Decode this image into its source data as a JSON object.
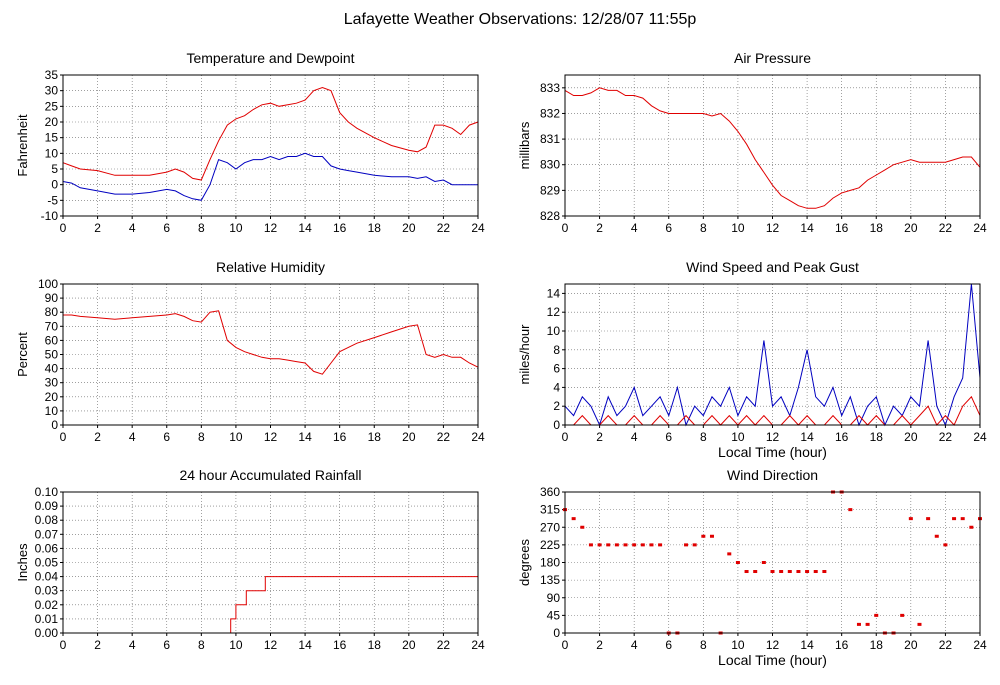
{
  "page_title": "Lafayette Weather Observations: 12/28/07 11:55p",
  "chart_data": [
    {
      "id": "temp",
      "type": "line",
      "title": "Temperature and Dewpoint",
      "ylabel": "Fahrenheit",
      "xlabel": "",
      "xlim": [
        0,
        24
      ],
      "ylim": [
        -10,
        35
      ],
      "xticks": [
        0,
        2,
        4,
        6,
        8,
        10,
        12,
        14,
        16,
        18,
        20,
        22,
        24
      ],
      "yticks": [
        -10,
        -5,
        0,
        5,
        10,
        15,
        20,
        25,
        30,
        35
      ],
      "grid": true,
      "series": [
        {
          "color": "#e00000",
          "x": [
            0,
            0.5,
            1,
            2,
            3,
            4,
            5,
            6,
            6.5,
            7,
            7.5,
            8,
            8.5,
            9,
            9.5,
            10,
            10.5,
            11,
            11.5,
            12,
            12.5,
            13,
            13.5,
            14,
            14.5,
            15,
            15.5,
            16,
            16.5,
            17,
            18,
            19,
            20,
            20.5,
            21,
            21.5,
            22,
            22.5,
            23,
            23.5,
            24
          ],
          "y": [
            7,
            6,
            5,
            4.5,
            3,
            3,
            3,
            4,
            5,
            4,
            2,
            1.5,
            8,
            14,
            19,
            21,
            22,
            24,
            25.5,
            26,
            25,
            25.5,
            26,
            27,
            30,
            31,
            30,
            23,
            20,
            18,
            15,
            12.5,
            11,
            10.5,
            12,
            19,
            19,
            18,
            16,
            19,
            20
          ]
        },
        {
          "color": "#0000c0",
          "x": [
            0,
            0.5,
            1,
            2,
            3,
            4,
            5,
            6,
            6.5,
            7,
            7.5,
            8,
            8.5,
            9,
            9.5,
            10,
            10.5,
            11,
            11.5,
            12,
            12.5,
            13,
            13.5,
            14,
            14.5,
            15,
            15.5,
            16,
            16.5,
            17,
            18,
            19,
            20,
            20.5,
            21,
            21.5,
            22,
            22.5,
            23,
            23.5,
            24
          ],
          "y": [
            1,
            0.5,
            -1,
            -2,
            -3,
            -3,
            -2.5,
            -1.5,
            -2,
            -3.5,
            -4.5,
            -5,
            0,
            8,
            7,
            5,
            7,
            8,
            8,
            9,
            8,
            9,
            9,
            10,
            9,
            9,
            6,
            5,
            4.5,
            4,
            3,
            2.5,
            2.5,
            2,
            2.5,
            1,
            1.5,
            0,
            0,
            0,
            0
          ]
        }
      ]
    },
    {
      "id": "pressure",
      "type": "line",
      "title": "Air Pressure",
      "ylabel": "millibars",
      "xlabel": "",
      "xlim": [
        0,
        24
      ],
      "ylim": [
        828,
        833.5
      ],
      "xticks": [
        0,
        2,
        4,
        6,
        8,
        10,
        12,
        14,
        16,
        18,
        20,
        22,
        24
      ],
      "yticks": [
        828,
        829,
        830,
        831,
        832,
        833
      ],
      "grid": true,
      "series": [
        {
          "color": "#e00000",
          "x": [
            0,
            0.5,
            1,
            1.5,
            2,
            2.5,
            3,
            3.5,
            4,
            4.5,
            5,
            5.5,
            6,
            7,
            8,
            8.5,
            9,
            9.5,
            10,
            10.5,
            11,
            11.5,
            12,
            12.5,
            13,
            13.5,
            14,
            14.5,
            15,
            15.5,
            16,
            16.5,
            17,
            17.5,
            18,
            18.5,
            19,
            19.5,
            20,
            20.5,
            21,
            21.5,
            22,
            22.5,
            23,
            23.5,
            24
          ],
          "y": [
            832.9,
            832.7,
            832.7,
            832.8,
            833,
            832.9,
            832.9,
            832.7,
            832.7,
            832.6,
            832.3,
            832.1,
            832,
            832,
            832,
            831.9,
            832,
            831.7,
            831.3,
            830.8,
            830.2,
            829.7,
            829.2,
            828.8,
            828.6,
            828.4,
            828.3,
            828.3,
            828.4,
            828.7,
            828.9,
            829,
            829.1,
            829.4,
            829.6,
            829.8,
            830,
            830.1,
            830.2,
            830.1,
            830.1,
            830.1,
            830.1,
            830.2,
            830.3,
            830.3,
            829.9
          ]
        }
      ]
    },
    {
      "id": "humidity",
      "type": "line",
      "title": "Relative Humidity",
      "ylabel": "Percent",
      "xlabel": "",
      "xlim": [
        0,
        24
      ],
      "ylim": [
        0,
        100
      ],
      "xticks": [
        0,
        2,
        4,
        6,
        8,
        10,
        12,
        14,
        16,
        18,
        20,
        22,
        24
      ],
      "yticks": [
        0,
        10,
        20,
        30,
        40,
        50,
        60,
        70,
        80,
        90,
        100
      ],
      "grid": true,
      "series": [
        {
          "color": "#e00000",
          "x": [
            0,
            0.5,
            1,
            2,
            3,
            4,
            5,
            6,
            6.5,
            7,
            7.5,
            8,
            8.5,
            9,
            9.5,
            10,
            10.5,
            11,
            11.5,
            12,
            12.5,
            13,
            13.5,
            14,
            14.5,
            15,
            15.5,
            16,
            16.5,
            17,
            18,
            19,
            20,
            20.5,
            21,
            21.5,
            22,
            22.5,
            23,
            23.5,
            24
          ],
          "y": [
            78,
            78,
            77,
            76,
            75,
            76,
            77,
            78,
            79,
            77,
            74,
            73,
            80,
            81,
            60,
            55,
            52,
            50,
            48,
            47,
            47,
            46,
            45,
            44,
            38,
            36,
            44,
            52,
            55,
            58,
            62,
            66,
            70,
            71,
            50,
            48,
            50,
            48,
            48,
            44,
            41
          ]
        }
      ]
    },
    {
      "id": "wind",
      "type": "line",
      "title": "Wind Speed and Peak Gust",
      "ylabel": "miles/hour",
      "xlabel": "Local Time (hour)",
      "xlim": [
        0,
        24
      ],
      "ylim": [
        0,
        15
      ],
      "xticks": [
        0,
        2,
        4,
        6,
        8,
        10,
        12,
        14,
        16,
        18,
        20,
        22,
        24
      ],
      "yticks": [
        0,
        2,
        4,
        6,
        8,
        10,
        12,
        14
      ],
      "grid": true,
      "series": [
        {
          "color": "#0000c0",
          "x": [
            0,
            0.5,
            1,
            1.5,
            2,
            2.5,
            3,
            3.5,
            4,
            4.5,
            5,
            5.5,
            6,
            6.5,
            7,
            7.5,
            8,
            8.5,
            9,
            9.5,
            10,
            10.5,
            11,
            11.5,
            12,
            12.5,
            13,
            13.5,
            14,
            14.5,
            15,
            15.5,
            16,
            16.5,
            17,
            17.5,
            18,
            18.5,
            19,
            19.5,
            20,
            20.5,
            21,
            21.5,
            22,
            22.5,
            23,
            23.5,
            24
          ],
          "y": [
            2,
            1,
            3,
            2,
            0,
            3,
            1,
            2,
            4,
            1,
            2,
            3,
            1,
            4,
            0,
            2,
            1,
            3,
            2,
            4,
            1,
            3,
            2,
            9,
            2,
            3,
            1,
            4,
            8,
            3,
            2,
            4,
            1,
            3,
            0,
            2,
            3,
            0,
            2,
            1,
            3,
            2,
            9,
            2,
            0,
            3,
            5,
            15,
            5
          ]
        },
        {
          "color": "#e00000",
          "x": [
            0,
            0.5,
            1,
            1.5,
            2,
            2.5,
            3,
            3.5,
            4,
            4.5,
            5,
            5.5,
            6,
            6.5,
            7,
            7.5,
            8,
            8.5,
            9,
            9.5,
            10,
            10.5,
            11,
            11.5,
            12,
            12.5,
            13,
            13.5,
            14,
            14.5,
            15,
            15.5,
            16,
            16.5,
            17,
            17.5,
            18,
            18.5,
            19,
            19.5,
            20,
            20.5,
            21,
            21.5,
            22,
            22.5,
            23,
            23.5,
            24
          ],
          "y": [
            0,
            0,
            1,
            0,
            0,
            1,
            0,
            0,
            1,
            0,
            0,
            1,
            0,
            0,
            1,
            0,
            0,
            1,
            0,
            1,
            0,
            1,
            0,
            1,
            0,
            0,
            1,
            0,
            1,
            0,
            0,
            1,
            0,
            0,
            1,
            0,
            1,
            0,
            0,
            1,
            0,
            1,
            2,
            0,
            1,
            0,
            2,
            3,
            1
          ]
        }
      ]
    },
    {
      "id": "rain",
      "type": "line",
      "title": "24 hour Accumulated Rainfall",
      "ylabel": "Inches",
      "xlabel": "",
      "xlim": [
        0,
        24
      ],
      "ylim": [
        0,
        0.1
      ],
      "xticks": [
        0,
        2,
        4,
        6,
        8,
        10,
        12,
        14,
        16,
        18,
        20,
        22,
        24
      ],
      "yticks": [
        "0.00",
        "0.01",
        "0.02",
        "0.03",
        "0.04",
        "0.05",
        "0.06",
        "0.07",
        "0.08",
        "0.09",
        "0.10"
      ],
      "grid": true,
      "series": [
        {
          "color": "#e00000",
          "x": [
            0,
            9.7,
            9.7,
            10,
            10,
            10.6,
            10.6,
            11.7,
            11.7,
            24
          ],
          "y": [
            0,
            0,
            0.01,
            0.01,
            0.02,
            0.02,
            0.03,
            0.03,
            0.04,
            0.04
          ]
        }
      ]
    },
    {
      "id": "direction",
      "type": "scatter",
      "title": "Wind Direction",
      "ylabel": "degrees",
      "xlabel": "Local Time (hour)",
      "xlim": [
        0,
        24
      ],
      "ylim": [
        0,
        360
      ],
      "xticks": [
        0,
        2,
        4,
        6,
        8,
        10,
        12,
        14,
        16,
        18,
        20,
        22,
        24
      ],
      "yticks": [
        0,
        45,
        90,
        135,
        180,
        225,
        270,
        315,
        360
      ],
      "grid": true,
      "series": [
        {
          "color": "#e00000",
          "x": [
            0,
            0.5,
            1,
            1.5,
            2,
            2.5,
            3,
            3.5,
            4,
            4.5,
            5,
            5.5,
            6,
            6.5,
            7,
            7.5,
            8,
            8.5,
            9,
            9.5,
            10,
            10.5,
            11,
            11.5,
            12,
            12.5,
            13,
            13.5,
            14,
            14.5,
            15,
            15.5,
            16,
            16.5,
            17,
            17.5,
            18,
            18.5,
            19,
            19.5,
            20,
            20.5,
            21,
            21.5,
            22,
            22.5,
            23,
            23.5,
            24
          ],
          "y": [
            315,
            292,
            270,
            225,
            225,
            225,
            225,
            225,
            225,
            225,
            225,
            225,
            0,
            0,
            225,
            225,
            247,
            247,
            0,
            202,
            180,
            157,
            157,
            180,
            157,
            157,
            157,
            157,
            157,
            157,
            157,
            360,
            360,
            315,
            22,
            22,
            45,
            0,
            0,
            45,
            292,
            22,
            292,
            247,
            225,
            292,
            292,
            270,
            292
          ]
        }
      ]
    }
  ]
}
